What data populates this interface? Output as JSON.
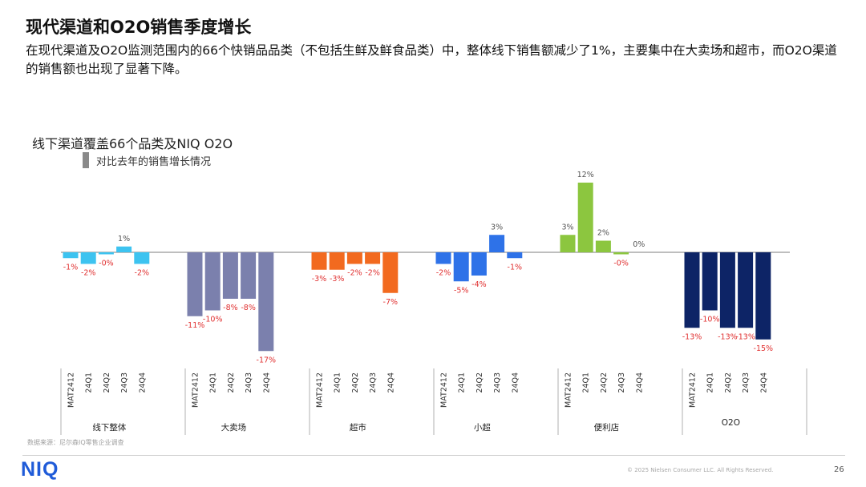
{
  "header": {
    "title": "现代渠道和O2O销售季度增长",
    "subtitle": "在现代渠道及O2O监测范围内的66个快销品品类（不包括生鲜及鲜食品类）中，整体线下销售额减少了1%，主要集中在大卖场和超市，而O2O渠道的销售额也出现了显著下降。"
  },
  "chart_data": {
    "type": "bar",
    "title": "线下渠道覆盖66个品类及NIQ O2O",
    "legend": [
      {
        "label": "对比去年的销售增长情况",
        "color": "#8a8a8a"
      }
    ],
    "unit": "%",
    "ylim": [
      -17,
      12
    ],
    "periods": [
      "MAT2412",
      "24Q1",
      "24Q2",
      "24Q3",
      "24Q4"
    ],
    "groups": [
      {
        "name": "线下整体",
        "color": "#3dc3f0",
        "values": [
          -1,
          -2,
          -0.3,
          1,
          -2
        ],
        "labels": [
          "-1%",
          "-2%",
          "-0%",
          "1%",
          "-2%"
        ]
      },
      {
        "name": "大卖场",
        "color": "#7b80ad",
        "values": [
          -11,
          -10,
          -8,
          -8,
          -17
        ],
        "labels": [
          "-11%",
          "-10%",
          "-8%",
          "-8%",
          "-17%"
        ]
      },
      {
        "name": "超市",
        "color": "#f26a1f",
        "values": [
          -3,
          -3,
          -2,
          -2,
          -7
        ],
        "labels": [
          "-3%",
          "-3%",
          "-2%",
          "-2%",
          "-7%"
        ]
      },
      {
        "name": "小超",
        "color": "#2e72e8",
        "values": [
          -2,
          -5,
          -4,
          3,
          -1
        ],
        "labels": [
          "-2%",
          "-5%",
          "-4%",
          "3%",
          "-1%"
        ]
      },
      {
        "name": "便利店",
        "color": "#8cc63f",
        "values": [
          3,
          12,
          2,
          -0.3,
          0
        ],
        "labels": [
          "3%",
          "12%",
          "2%",
          "-0%",
          "0%"
        ]
      },
      {
        "name": "O2O",
        "color": "#0d2466",
        "values": [
          -13,
          -10,
          -13,
          -13,
          -15
        ],
        "labels": [
          "-13%",
          "-10%",
          "-13%",
          "-13%",
          "-15%"
        ]
      }
    ]
  },
  "footer": {
    "source": "数据来源：尼尔森IQ零售企业调查",
    "logo": "NIQ",
    "copyright": "© 2025 Nielsen Consumer LLC. All Rights Reserved.",
    "page": "26"
  }
}
